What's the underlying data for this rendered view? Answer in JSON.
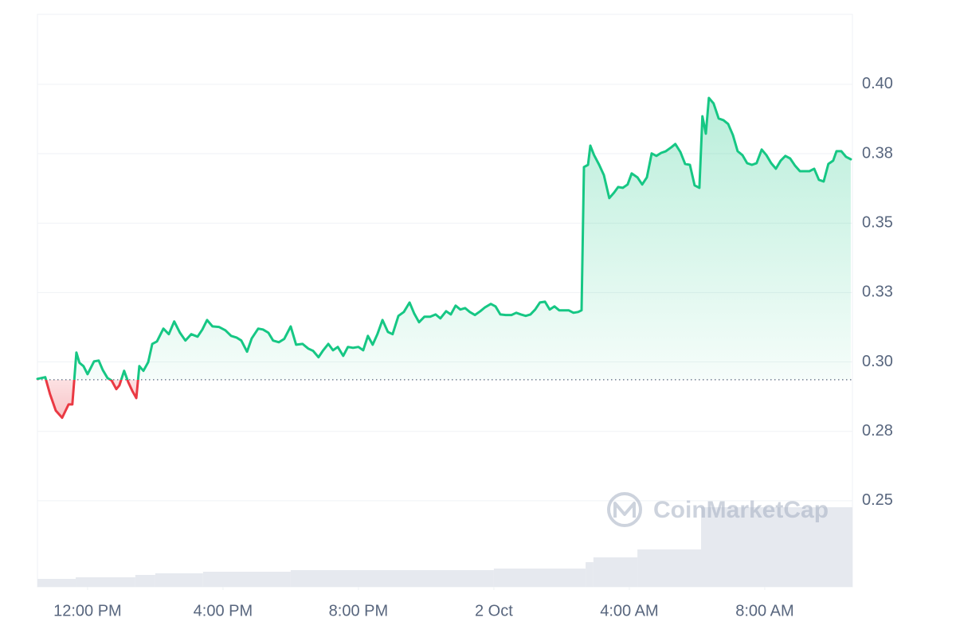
{
  "chart_data": {
    "type": "line",
    "watermark": "CoinMarketCap",
    "x": [
      10.52,
      10.75,
      10.89,
      11.06,
      11.25,
      11.44,
      11.55,
      11.67,
      11.76,
      11.88,
      12.0,
      12.19,
      12.33,
      12.45,
      12.59,
      12.71,
      12.85,
      12.94,
      13.08,
      13.2,
      13.32,
      13.44,
      13.53,
      13.65,
      13.79,
      13.91,
      14.05,
      14.24,
      14.4,
      14.56,
      14.73,
      14.89,
      15.06,
      15.25,
      15.39,
      15.53,
      15.69,
      15.88,
      16.07,
      16.24,
      16.4,
      16.54,
      16.71,
      16.85,
      17.04,
      17.18,
      17.34,
      17.48,
      17.65,
      17.81,
      18.0,
      18.16,
      18.35,
      18.52,
      18.66,
      18.82,
      18.96,
      19.11,
      19.25,
      19.39,
      19.55,
      19.69,
      19.84,
      20.0,
      20.14,
      20.28,
      20.42,
      20.56,
      20.71,
      20.87,
      21.01,
      21.18,
      21.34,
      21.51,
      21.65,
      21.79,
      21.95,
      22.12,
      22.28,
      22.42,
      22.59,
      22.73,
      22.87,
      23.01,
      23.15,
      23.29,
      23.44,
      23.6,
      23.74,
      23.91,
      24.05,
      24.19,
      24.35,
      24.52,
      24.66,
      24.8,
      24.94,
      25.08,
      25.22,
      25.36,
      25.51,
      25.65,
      25.79,
      25.93,
      26.07,
      26.21,
      26.35,
      26.49,
      26.59,
      26.66,
      26.78,
      26.85,
      26.96,
      27.11,
      27.25,
      27.41,
      27.55,
      27.67,
      27.81,
      27.95,
      28.07,
      28.24,
      28.38,
      28.52,
      28.66,
      28.8,
      28.94,
      29.08,
      29.25,
      29.36,
      29.51,
      29.65,
      29.79,
      29.93,
      30.07,
      30.16,
      30.26,
      30.35,
      30.49,
      30.64,
      30.78,
      30.92,
      31.06,
      31.2,
      31.34,
      31.48,
      31.62,
      31.76,
      31.91,
      32.05,
      32.19,
      32.33,
      32.47,
      32.61,
      32.75,
      32.89,
      33.04,
      33.18,
      33.32,
      33.46,
      33.6,
      33.74,
      33.88,
      34.02,
      34.12,
      34.26,
      34.4,
      34.54
    ],
    "series": [
      {
        "color": "#16c784",
        "negative_color": "#ea3943",
        "values": [
          0.2939,
          0.2945,
          0.2885,
          0.2825,
          0.2799,
          0.2847,
          0.2847,
          0.3034,
          0.2997,
          0.2985,
          0.2956,
          0.3002,
          0.3005,
          0.2971,
          0.2942,
          0.2933,
          0.2902,
          0.2916,
          0.2968,
          0.2928,
          0.2896,
          0.287,
          0.2985,
          0.2968,
          0.2999,
          0.3065,
          0.3074,
          0.312,
          0.31,
          0.3146,
          0.3105,
          0.3077,
          0.31,
          0.3091,
          0.3117,
          0.3151,
          0.3128,
          0.3126,
          0.3114,
          0.3094,
          0.3088,
          0.3077,
          0.3037,
          0.3085,
          0.312,
          0.3117,
          0.3105,
          0.3077,
          0.3071,
          0.3083,
          0.3128,
          0.3062,
          0.3065,
          0.3048,
          0.304,
          0.3017,
          0.3042,
          0.3065,
          0.3042,
          0.3054,
          0.3022,
          0.3054,
          0.3051,
          0.3054,
          0.3042,
          0.3094,
          0.3062,
          0.31,
          0.3151,
          0.3108,
          0.31,
          0.3166,
          0.318,
          0.3214,
          0.3174,
          0.3143,
          0.3163,
          0.3163,
          0.3171,
          0.3157,
          0.3183,
          0.3171,
          0.3203,
          0.3189,
          0.3194,
          0.318,
          0.3169,
          0.3183,
          0.3197,
          0.3209,
          0.32,
          0.3171,
          0.3169,
          0.3169,
          0.3177,
          0.3171,
          0.3166,
          0.3171,
          0.3189,
          0.3214,
          0.3217,
          0.3189,
          0.32,
          0.3186,
          0.3186,
          0.3186,
          0.3177,
          0.318,
          0.3186,
          0.3702,
          0.371,
          0.3779,
          0.3745,
          0.371,
          0.3673,
          0.359,
          0.361,
          0.363,
          0.3627,
          0.3639,
          0.3679,
          0.3665,
          0.3639,
          0.3665,
          0.3751,
          0.3742,
          0.3753,
          0.3759,
          0.3774,
          0.3785,
          0.3756,
          0.3713,
          0.371,
          0.3636,
          0.3627,
          0.3885,
          0.3822,
          0.3951,
          0.3931,
          0.3877,
          0.3871,
          0.3857,
          0.3817,
          0.3759,
          0.3745,
          0.3716,
          0.371,
          0.3716,
          0.3765,
          0.3745,
          0.3716,
          0.3696,
          0.3725,
          0.3742,
          0.3733,
          0.3708,
          0.3687,
          0.3687,
          0.3687,
          0.3696,
          0.3656,
          0.365,
          0.3713,
          0.3725,
          0.3759,
          0.3759,
          0.3739,
          0.373
        ]
      }
    ],
    "reference_value": 0.2936,
    "xlim": [
      10.52,
      34.59
    ],
    "xticks": [
      {
        "value": 12,
        "label": "12:00 PM"
      },
      {
        "value": 16,
        "label": "4:00 PM"
      },
      {
        "value": 20,
        "label": "8:00 PM"
      },
      {
        "value": 24,
        "label": "2 Oct"
      },
      {
        "value": 28,
        "label": "4:00 AM"
      },
      {
        "value": 32,
        "label": "8:00 AM"
      }
    ],
    "ylim": [
      0.219,
      0.4252
    ],
    "yticks": [
      {
        "value": 0.25,
        "label": "0.25"
      },
      {
        "value": 0.275,
        "label": "0.28"
      },
      {
        "value": 0.3,
        "label": "0.30"
      },
      {
        "value": 0.325,
        "label": "0.33"
      },
      {
        "value": 0.35,
        "label": "0.35"
      },
      {
        "value": 0.375,
        "label": "0.38"
      },
      {
        "value": 0.4,
        "label": "0.40"
      }
    ],
    "grid": true,
    "volume": {
      "color": "#e6e9ef",
      "bins": [
        10.52,
        11.65,
        13.41,
        14.0,
        15.41,
        18.0,
        24.0,
        26.71,
        26.94,
        28.24,
        30.12,
        34.59
      ],
      "values": [
        10,
        12,
        15,
        17,
        19,
        21,
        23,
        31,
        37,
        47,
        100
      ]
    }
  }
}
